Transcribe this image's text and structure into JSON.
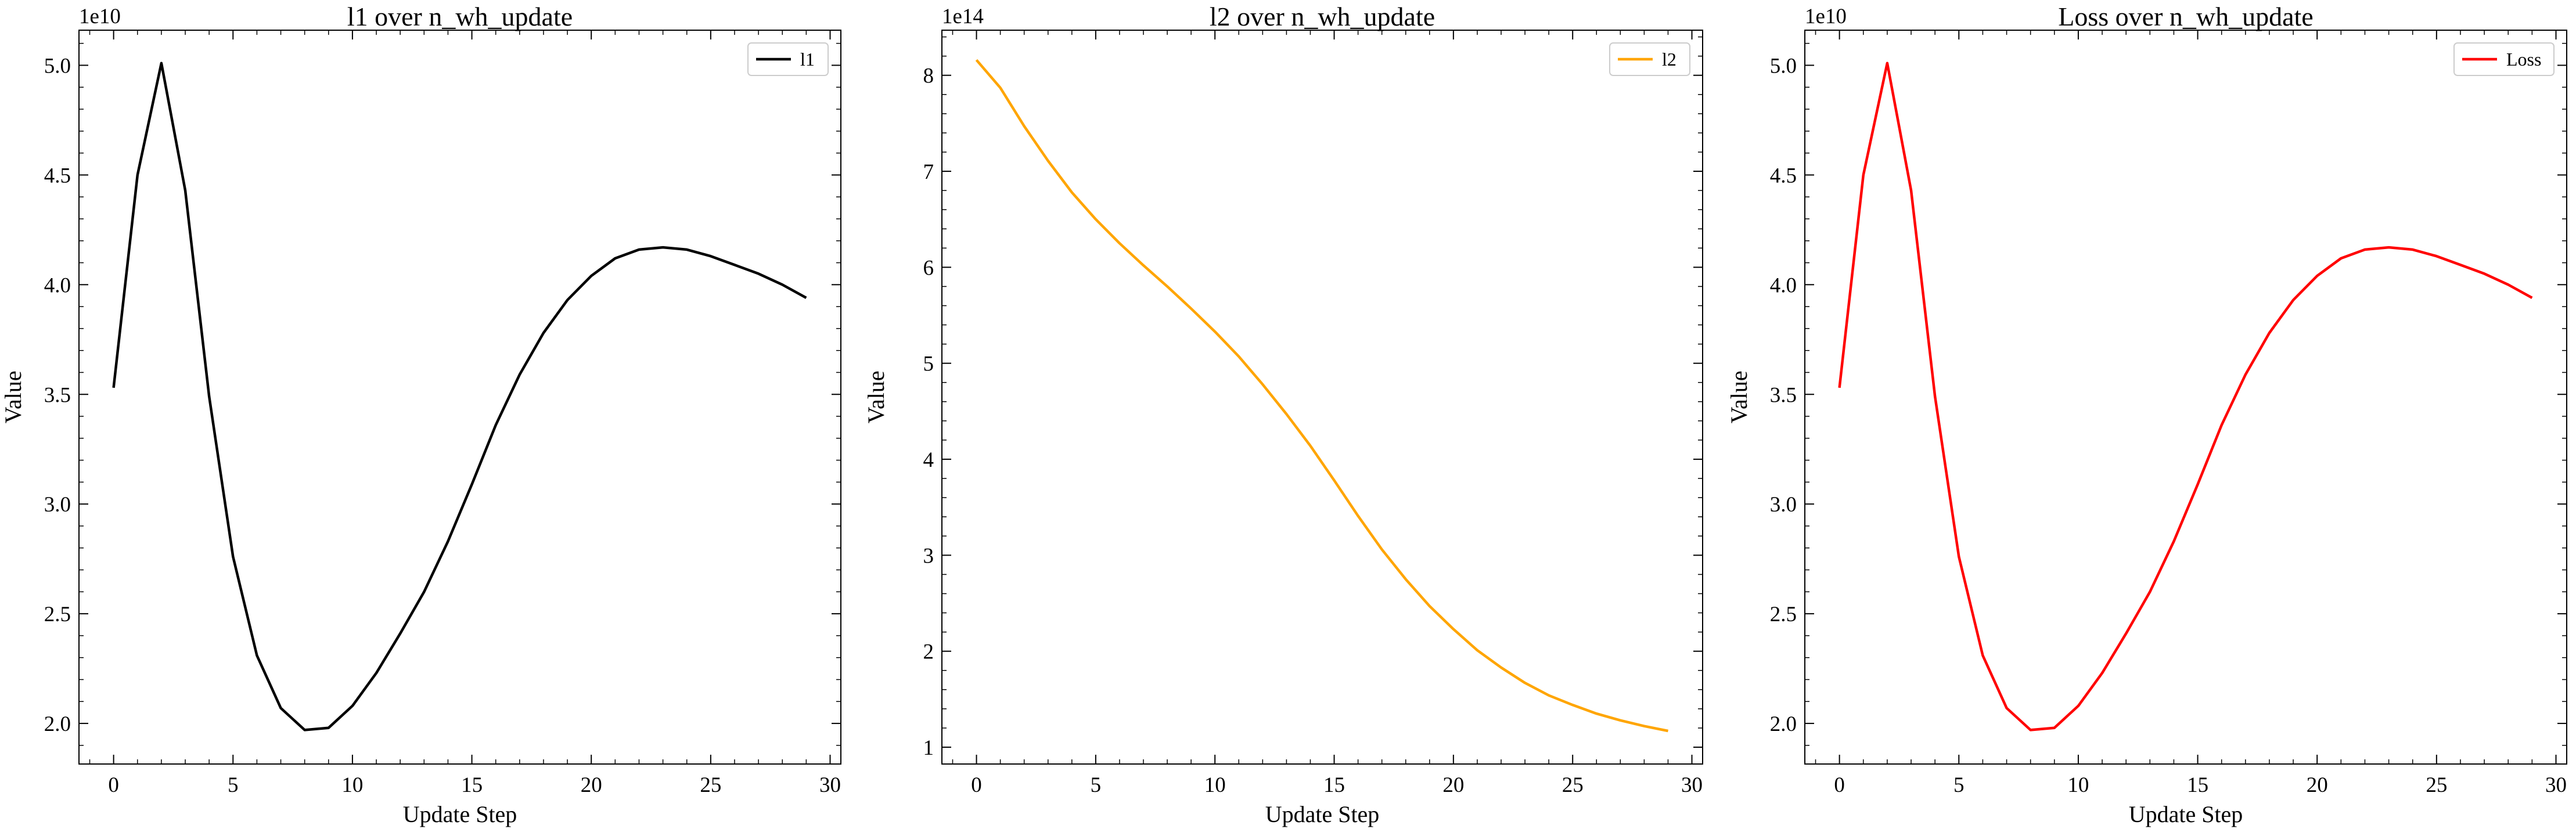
{
  "chart_data": [
    {
      "type": "line",
      "title": "l1 over n_wh_update",
      "xlabel": "Update Step",
      "ylabel": "Value",
      "offset_label": "1e10",
      "xlim": [
        -1.45,
        30.45
      ],
      "ylim": [
        1.815,
        5.16
      ],
      "xticks": [
        0,
        5,
        10,
        15,
        20,
        25,
        30
      ],
      "yticks": [
        2.0,
        2.5,
        3.0,
        3.5,
        4.0,
        4.5,
        5.0
      ],
      "ytick_labels": [
        "2.0",
        "2.5",
        "3.0",
        "3.5",
        "4.0",
        "4.5",
        "5.0"
      ],
      "legend_position": "top-right",
      "grid": false,
      "series": [
        {
          "name": "l1",
          "color": "#000000",
          "x": [
            0,
            1,
            2,
            3,
            4,
            5,
            6,
            7,
            8,
            9,
            10,
            11,
            12,
            13,
            14,
            15,
            16,
            17,
            18,
            19,
            20,
            21,
            22,
            23,
            24,
            25,
            26,
            27,
            28,
            29
          ],
          "values": [
            3.53,
            4.5,
            5.01,
            4.43,
            3.49,
            2.76,
            2.31,
            2.07,
            1.97,
            1.98,
            2.08,
            2.23,
            2.41,
            2.6,
            2.83,
            3.09,
            3.36,
            3.59,
            3.78,
            3.93,
            4.04,
            4.12,
            4.16,
            4.17,
            4.16,
            4.13,
            4.09,
            4.05,
            4.0,
            3.94
          ]
        }
      ]
    },
    {
      "type": "line",
      "title": "l2 over n_wh_update",
      "xlabel": "Update Step",
      "ylabel": "Value",
      "offset_label": "1e14",
      "xlim": [
        -1.45,
        30.45
      ],
      "ylim": [
        0.825,
        8.47
      ],
      "xticks": [
        0,
        5,
        10,
        15,
        20,
        25,
        30
      ],
      "yticks": [
        1,
        2,
        3,
        4,
        5,
        6,
        7,
        8
      ],
      "ytick_labels": [
        "1",
        "2",
        "3",
        "4",
        "5",
        "6",
        "7",
        "8"
      ],
      "legend_position": "top-right",
      "grid": false,
      "series": [
        {
          "name": "l2",
          "color": "#FFA500",
          "x": [
            0,
            1,
            2,
            3,
            4,
            5,
            6,
            7,
            8,
            9,
            10,
            11,
            12,
            13,
            14,
            15,
            16,
            17,
            18,
            19,
            20,
            21,
            22,
            23,
            24,
            25,
            26,
            27,
            28,
            29
          ],
          "values": [
            8.16,
            7.87,
            7.47,
            7.11,
            6.78,
            6.5,
            6.25,
            6.02,
            5.8,
            5.57,
            5.33,
            5.07,
            4.78,
            4.47,
            4.14,
            3.78,
            3.41,
            3.06,
            2.75,
            2.47,
            2.23,
            2.01,
            1.83,
            1.67,
            1.54,
            1.44,
            1.35,
            1.28,
            1.22,
            1.17
          ]
        }
      ]
    },
    {
      "type": "line",
      "title": "Loss over n_wh_update",
      "xlabel": "Update Step",
      "ylabel": "Value",
      "offset_label": "1e10",
      "xlim": [
        -1.45,
        30.45
      ],
      "ylim": [
        1.815,
        5.16
      ],
      "xticks": [
        0,
        5,
        10,
        15,
        20,
        25,
        30
      ],
      "yticks": [
        2.0,
        2.5,
        3.0,
        3.5,
        4.0,
        4.5,
        5.0
      ],
      "ytick_labels": [
        "2.0",
        "2.5",
        "3.0",
        "3.5",
        "4.0",
        "4.5",
        "5.0"
      ],
      "legend_position": "top-right",
      "grid": false,
      "series": [
        {
          "name": "Loss",
          "color": "#FF0000",
          "x": [
            0,
            1,
            2,
            3,
            4,
            5,
            6,
            7,
            8,
            9,
            10,
            11,
            12,
            13,
            14,
            15,
            16,
            17,
            18,
            19,
            20,
            21,
            22,
            23,
            24,
            25,
            26,
            27,
            28,
            29
          ],
          "values": [
            3.53,
            4.5,
            5.01,
            4.43,
            3.49,
            2.76,
            2.31,
            2.07,
            1.97,
            1.98,
            2.08,
            2.23,
            2.41,
            2.6,
            2.83,
            3.09,
            3.36,
            3.59,
            3.78,
            3.93,
            4.04,
            4.12,
            4.16,
            4.17,
            4.16,
            4.13,
            4.09,
            4.05,
            4.0,
            3.94
          ]
        }
      ]
    }
  ]
}
